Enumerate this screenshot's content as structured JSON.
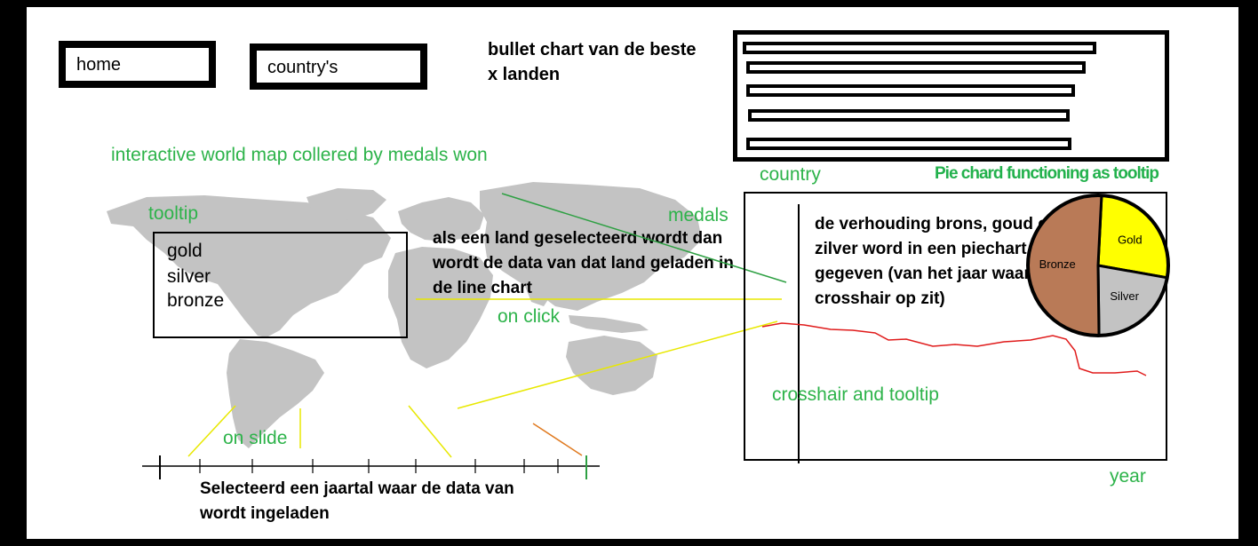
{
  "nav": {
    "home_label": "home",
    "countries_label": "country's"
  },
  "bullet_chart": {
    "note": "bullet chart van de beste\nx landen",
    "bars": [
      {
        "value": 0.99
      },
      {
        "value": 0.95
      },
      {
        "value": 0.92
      },
      {
        "value": 0.9
      },
      {
        "value": 0.91
      }
    ]
  },
  "map": {
    "title": "interactive world map collered by medals won",
    "tooltip_label": "tooltip",
    "tooltip_items": [
      "gold",
      "silver",
      "bronze"
    ],
    "select_note": "als een land geselecteerd wordt dan\nwordt de data van dat land geladen in\nde line chart",
    "on_click_label": "on click"
  },
  "slider": {
    "on_slide_label": "on slide",
    "note": "Selecteerd een jaartal waar de data van\nwordt ingeladen"
  },
  "line_chart": {
    "country_label": "country",
    "medals_label": "medals",
    "year_label": "year",
    "crosshair_label": "crosshair and tooltip"
  },
  "pie": {
    "title": "Pie chard functioning as tooltip",
    "note": "de verhouding brons, goud en\nzilver word in een piechart weer\ngegeven (van het jaar waar de\ncrosshair op zit)",
    "slices": [
      {
        "label": "Gold",
        "value": 27,
        "color": "#ffff00"
      },
      {
        "label": "Silver",
        "value": 22,
        "color": "#c3c3c3"
      },
      {
        "label": "Bronze",
        "value": 51,
        "color": "#b97a57"
      }
    ]
  }
}
